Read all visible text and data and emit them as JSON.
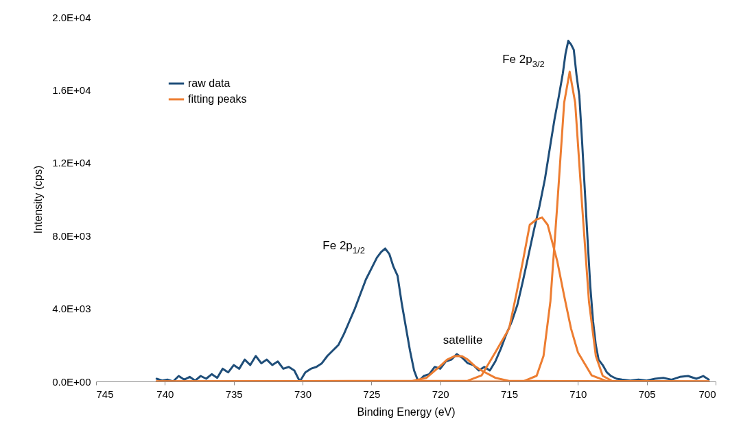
{
  "chart_data": {
    "type": "line",
    "xlabel": "Binding Energy (eV)",
    "ylabel": "Intensity (cps)",
    "xlim": [
      745,
      700
    ],
    "xticks": [
      745,
      740,
      735,
      730,
      725,
      720,
      715,
      710,
      705,
      700
    ],
    "ylim": [
      0,
      20000
    ],
    "yticks": [
      {
        "value": 0,
        "label": "0.0E+00"
      },
      {
        "value": 4000,
        "label": "4.0E+03"
      },
      {
        "value": 8000,
        "label": "8.0E+03"
      },
      {
        "value": 12000,
        "label": "1.2E+04"
      },
      {
        "value": 16000,
        "label": "1.6E+04"
      },
      {
        "value": 20000,
        "label": "2.0E+04"
      }
    ],
    "grid": false,
    "legend": "top left",
    "marker": "none",
    "line_style": "solid",
    "annotations": [
      "Fe 2p$_{1/2}$",
      "Fe 2p$_{3/2}$",
      "satellite"
    ],
    "series": [
      {
        "name": "raw data",
        "color": "#1f4e79",
        "x": [
          740.6,
          740.2,
          739.8,
          739.4,
          739,
          738.6,
          738.2,
          737.8,
          737.4,
          737,
          736.6,
          736.2,
          735.8,
          735.4,
          735,
          734.6,
          734.2,
          733.8,
          733.4,
          733,
          732.6,
          732.2,
          731.8,
          731.4,
          731,
          730.6,
          730.2,
          729.8,
          729.4,
          729,
          728.6,
          728.2,
          727.8,
          727.4,
          727,
          726.6,
          726.2,
          725.8,
          725.4,
          725,
          724.6,
          724.3,
          724,
          723.7,
          723.4,
          723.1,
          722.8,
          722.5,
          722.2,
          721.9,
          721.6,
          721.2,
          720.8,
          720.4,
          720,
          719.6,
          719.2,
          718.8,
          718.4,
          718,
          717.6,
          717.2,
          716.8,
          716.4,
          716,
          715.6,
          715.2,
          714.8,
          714.4,
          714,
          713.6,
          713.2,
          712.8,
          712.4,
          712,
          711.7,
          711.4,
          711.1,
          710.9,
          710.7,
          710.5,
          710.3,
          710.1,
          709.9,
          709.7,
          709.5,
          709.3,
          709.1,
          708.9,
          708.7,
          708.5,
          708.2,
          707.9,
          707.6,
          707.2,
          706.8,
          706.2,
          705.6,
          705,
          704.4,
          703.8,
          703.2,
          702.6,
          702,
          701.4,
          700.9,
          700.5
        ],
        "values": [
          150,
          50,
          100,
          0,
          300,
          100,
          250,
          50,
          300,
          150,
          400,
          200,
          700,
          500,
          900,
          700,
          1200,
          900,
          1400,
          1000,
          1200,
          900,
          1100,
          700,
          800,
          600,
          0,
          500,
          700,
          800,
          1000,
          1400,
          1700,
          2000,
          2600,
          3300,
          4000,
          4800,
          5600,
          6200,
          6800,
          7100,
          7300,
          7000,
          6300,
          5800,
          4300,
          3000,
          1700,
          600,
          0,
          300,
          400,
          800,
          700,
          1100,
          1200,
          1500,
          1300,
          1000,
          900,
          600,
          800,
          600,
          1100,
          1800,
          2600,
          3300,
          4200,
          5500,
          6900,
          8300,
          9600,
          11100,
          13000,
          14400,
          15600,
          16900,
          18000,
          18700,
          18500,
          18200,
          16800,
          15700,
          13200,
          10500,
          7800,
          5200,
          3300,
          2000,
          1200,
          900,
          500,
          300,
          150,
          100,
          50,
          100,
          50,
          150,
          200,
          100,
          250,
          300,
          150,
          300,
          100
        ]
      },
      {
        "name": "fitting peaks",
        "color": "#ed7d31",
        "x": [
          740.6,
          722,
          721,
          720,
          719.5,
          719,
          718.7,
          718.4,
          718,
          717.5,
          717,
          716,
          715,
          700.5
        ],
        "values": [
          0,
          30,
          200,
          850,
          1200,
          1380,
          1400,
          1380,
          1200,
          850,
          600,
          200,
          30,
          0
        ]
      },
      {
        "color": "#ed7d31",
        "x": [
          740.6,
          718,
          717,
          716,
          715,
          714.5,
          714,
          713.5,
          713,
          712.6,
          712.2,
          711.5,
          711,
          710.5,
          710,
          709,
          708,
          707,
          700.5
        ],
        "values": [
          0,
          40,
          330,
          1600,
          2900,
          4700,
          6600,
          8600,
          8900,
          9000,
          8600,
          6600,
          4700,
          2900,
          1600,
          330,
          40,
          0,
          0
        ]
      },
      {
        "color": "#ed7d31",
        "x": [
          740.6,
          714,
          713,
          712.5,
          712,
          711.5,
          711,
          710.6,
          710.2,
          709.7,
          709.2,
          708.7,
          708.2,
          707.5,
          700.5
        ],
        "values": [
          0,
          0,
          310,
          1400,
          4400,
          9700,
          15300,
          17000,
          15300,
          9700,
          4400,
          1400,
          310,
          20,
          0
        ]
      }
    ]
  }
}
